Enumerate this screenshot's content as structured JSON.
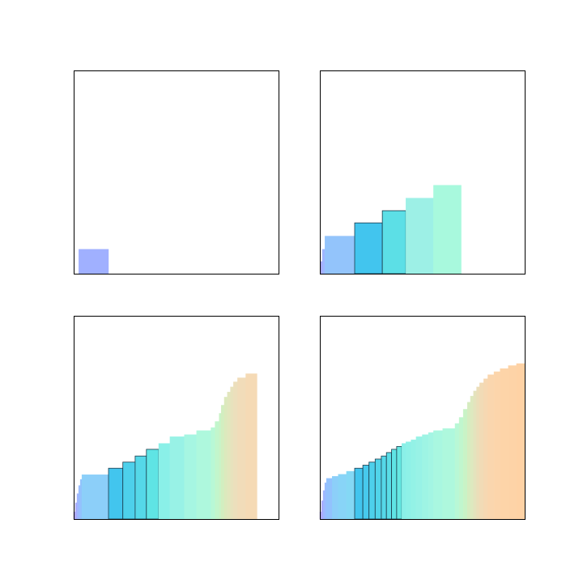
{
  "chart_data": [
    {
      "type": "bar",
      "panel": "top-left",
      "xlim": [
        0,
        1
      ],
      "ylim": [
        0,
        1
      ],
      "grid": false,
      "axis_ticks": false,
      "bars": [
        {
          "x0": 0.025,
          "x1": 0.17,
          "y": 0.12,
          "color": "#a0b0ff",
          "edge": false
        }
      ]
    },
    {
      "type": "bar",
      "panel": "top-right",
      "xlim": [
        0,
        1
      ],
      "ylim": [
        0,
        1
      ],
      "grid": false,
      "axis_ticks": false,
      "bars": [
        {
          "x0": 0.004,
          "x1": 0.012,
          "y": 0.06,
          "color": "#a8a8ff",
          "edge": false
        },
        {
          "x0": 0.012,
          "x1": 0.025,
          "y": 0.12,
          "color": "#9fb6ff",
          "edge": false
        },
        {
          "x0": 0.025,
          "x1": 0.17,
          "y": 0.185,
          "color": "#93c4fb",
          "edge": false
        },
        {
          "x0": 0.17,
          "x1": 0.305,
          "y": 0.25,
          "color": "#42c5ee",
          "edge": true
        },
        {
          "x0": 0.305,
          "x1": 0.42,
          "y": 0.31,
          "color": "#5cdfe6",
          "edge": true
        },
        {
          "x0": 0.42,
          "x1": 0.555,
          "y": 0.372,
          "color": "#9df0e6",
          "edge": false
        },
        {
          "x0": 0.555,
          "x1": 0.69,
          "y": 0.435,
          "color": "#a8f9dd",
          "edge": false
        }
      ]
    },
    {
      "type": "bar",
      "panel": "bottom-left",
      "xlim": [
        0,
        1
      ],
      "ylim": [
        0,
        1
      ],
      "grid": false,
      "axis_ticks": false,
      "bars": [
        {
          "x0": 0.0,
          "x1": 0.008,
          "y": 0.035,
          "color": "#b5a5ff",
          "edge": false
        },
        {
          "x0": 0.008,
          "x1": 0.016,
          "y": 0.08,
          "color": "#a9abff",
          "edge": false
        },
        {
          "x0": 0.016,
          "x1": 0.024,
          "y": 0.125,
          "color": "#9fb5ff",
          "edge": false
        },
        {
          "x0": 0.024,
          "x1": 0.032,
          "y": 0.165,
          "color": "#98bcff",
          "edge": false
        },
        {
          "x0": 0.032,
          "x1": 0.04,
          "y": 0.195,
          "color": "#92c2fd",
          "edge": false
        },
        {
          "x0": 0.04,
          "x1": 0.17,
          "y": 0.218,
          "color": "#8ccff9",
          "edge": false
        },
        {
          "x0": 0.17,
          "x1": 0.24,
          "y": 0.25,
          "color": "#42c5ee",
          "edge": true
        },
        {
          "x0": 0.24,
          "x1": 0.3,
          "y": 0.28,
          "color": "#4dd0eb",
          "edge": true
        },
        {
          "x0": 0.3,
          "x1": 0.355,
          "y": 0.31,
          "color": "#55d8e8",
          "edge": true
        },
        {
          "x0": 0.355,
          "x1": 0.415,
          "y": 0.343,
          "color": "#5fe4e4",
          "edge": true
        },
        {
          "x0": 0.415,
          "x1": 0.47,
          "y": 0.372,
          "color": "#8af0e8",
          "edge": false
        },
        {
          "x0": 0.47,
          "x1": 0.54,
          "y": 0.405,
          "color": "#98f2e6",
          "edge": false
        },
        {
          "x0": 0.54,
          "x1": 0.6,
          "y": 0.415,
          "color": "#a6f6e2",
          "edge": false
        },
        {
          "x0": 0.6,
          "x1": 0.67,
          "y": 0.435,
          "color": "#aef8dd",
          "edge": false
        },
        {
          "x0": 0.67,
          "x1": 0.69,
          "y": 0.45,
          "color": "#b8f8d6",
          "edge": false
        },
        {
          "x0": 0.69,
          "x1": 0.71,
          "y": 0.48,
          "color": "#c2f6cc",
          "edge": false
        },
        {
          "x0": 0.71,
          "x1": 0.72,
          "y": 0.52,
          "color": "#c9f3c6",
          "edge": false
        },
        {
          "x0": 0.72,
          "x1": 0.735,
          "y": 0.56,
          "color": "#d2eec0",
          "edge": false
        },
        {
          "x0": 0.735,
          "x1": 0.75,
          "y": 0.6,
          "color": "#dce9bd",
          "edge": false
        },
        {
          "x0": 0.75,
          "x1": 0.765,
          "y": 0.625,
          "color": "#e2e6bd",
          "edge": false
        },
        {
          "x0": 0.765,
          "x1": 0.78,
          "y": 0.65,
          "color": "#e7e2bd",
          "edge": false
        },
        {
          "x0": 0.78,
          "x1": 0.8,
          "y": 0.675,
          "color": "#ecdfbc",
          "edge": false
        },
        {
          "x0": 0.8,
          "x1": 0.84,
          "y": 0.695,
          "color": "#f1dcb9",
          "edge": false
        },
        {
          "x0": 0.84,
          "x1": 0.895,
          "y": 0.715,
          "color": "#f5dab5",
          "edge": false
        }
      ]
    },
    {
      "type": "bar",
      "panel": "bottom-right",
      "xlim": [
        0,
        1
      ],
      "ylim": [
        0,
        1
      ],
      "grid": false,
      "axis_ticks": false,
      "bars": [
        {
          "x0": 0.0,
          "x1": 0.008,
          "y": 0.035,
          "color": "#b5a5ff",
          "edge": false
        },
        {
          "x0": 0.008,
          "x1": 0.016,
          "y": 0.09,
          "color": "#a9abff",
          "edge": false
        },
        {
          "x0": 0.016,
          "x1": 0.024,
          "y": 0.14,
          "color": "#9fb5ff",
          "edge": false
        },
        {
          "x0": 0.024,
          "x1": 0.032,
          "y": 0.178,
          "color": "#98bcff",
          "edge": false
        },
        {
          "x0": 0.032,
          "x1": 0.06,
          "y": 0.2,
          "color": "#92c2fd",
          "edge": false
        },
        {
          "x0": 0.06,
          "x1": 0.09,
          "y": 0.21,
          "color": "#8ccff9",
          "edge": false
        },
        {
          "x0": 0.09,
          "x1": 0.13,
          "y": 0.22,
          "color": "#88d4f7",
          "edge": false
        },
        {
          "x0": 0.13,
          "x1": 0.17,
          "y": 0.235,
          "color": "#84d8f5",
          "edge": false
        },
        {
          "x0": 0.17,
          "x1": 0.21,
          "y": 0.25,
          "color": "#42c5ee",
          "edge": true
        },
        {
          "x0": 0.21,
          "x1": 0.24,
          "y": 0.265,
          "color": "#47c9ed",
          "edge": true
        },
        {
          "x0": 0.24,
          "x1": 0.27,
          "y": 0.28,
          "color": "#4dd0eb",
          "edge": true
        },
        {
          "x0": 0.27,
          "x1": 0.3,
          "y": 0.295,
          "color": "#51d4e9",
          "edge": true
        },
        {
          "x0": 0.3,
          "x1": 0.325,
          "y": 0.31,
          "color": "#55d8e8",
          "edge": true
        },
        {
          "x0": 0.325,
          "x1": 0.35,
          "y": 0.327,
          "color": "#5adde6",
          "edge": true
        },
        {
          "x0": 0.35,
          "x1": 0.375,
          "y": 0.343,
          "color": "#5fe4e4",
          "edge": true
        },
        {
          "x0": 0.375,
          "x1": 0.4,
          "y": 0.357,
          "color": "#66e8e2",
          "edge": true
        },
        {
          "x0": 0.4,
          "x1": 0.42,
          "y": 0.372,
          "color": "#8af0e8",
          "edge": false
        },
        {
          "x0": 0.42,
          "x1": 0.445,
          "y": 0.38,
          "color": "#8ef1e7",
          "edge": false
        },
        {
          "x0": 0.445,
          "x1": 0.47,
          "y": 0.39,
          "color": "#93f2e6",
          "edge": false
        },
        {
          "x0": 0.47,
          "x1": 0.5,
          "y": 0.405,
          "color": "#98f2e6",
          "edge": false
        },
        {
          "x0": 0.5,
          "x1": 0.53,
          "y": 0.415,
          "color": "#9ef4e4",
          "edge": false
        },
        {
          "x0": 0.53,
          "x1": 0.555,
          "y": 0.425,
          "color": "#a3f5e3",
          "edge": false
        },
        {
          "x0": 0.555,
          "x1": 0.6,
          "y": 0.435,
          "color": "#a9f7e0",
          "edge": false
        },
        {
          "x0": 0.6,
          "x1": 0.66,
          "y": 0.445,
          "color": "#aef8dd",
          "edge": false
        },
        {
          "x0": 0.66,
          "x1": 0.68,
          "y": 0.47,
          "color": "#b8f8d6",
          "edge": false
        },
        {
          "x0": 0.68,
          "x1": 0.7,
          "y": 0.5,
          "color": "#c0f6ce",
          "edge": false
        },
        {
          "x0": 0.7,
          "x1": 0.72,
          "y": 0.54,
          "color": "#c9f3c6",
          "edge": false
        },
        {
          "x0": 0.72,
          "x1": 0.735,
          "y": 0.575,
          "color": "#d6ecc0",
          "edge": false
        },
        {
          "x0": 0.735,
          "x1": 0.75,
          "y": 0.605,
          "color": "#dde9bf",
          "edge": false
        },
        {
          "x0": 0.75,
          "x1": 0.765,
          "y": 0.63,
          "color": "#e4e3bd",
          "edge": false
        },
        {
          "x0": 0.765,
          "x1": 0.78,
          "y": 0.65,
          "color": "#ebdeb9",
          "edge": false
        },
        {
          "x0": 0.78,
          "x1": 0.8,
          "y": 0.67,
          "color": "#f1dbb6",
          "edge": false
        },
        {
          "x0": 0.8,
          "x1": 0.82,
          "y": 0.69,
          "color": "#f6d8b2",
          "edge": false
        },
        {
          "x0": 0.82,
          "x1": 0.85,
          "y": 0.71,
          "color": "#fad6ae",
          "edge": false
        },
        {
          "x0": 0.85,
          "x1": 0.88,
          "y": 0.725,
          "color": "#fcd5ab",
          "edge": false
        },
        {
          "x0": 0.88,
          "x1": 0.92,
          "y": 0.74,
          "color": "#fdd4a8",
          "edge": false
        },
        {
          "x0": 0.92,
          "x1": 0.96,
          "y": 0.755,
          "color": "#fdd3a7",
          "edge": false
        },
        {
          "x0": 0.96,
          "x1": 1.0,
          "y": 0.765,
          "color": "#fed2a5",
          "edge": false
        }
      ]
    }
  ]
}
